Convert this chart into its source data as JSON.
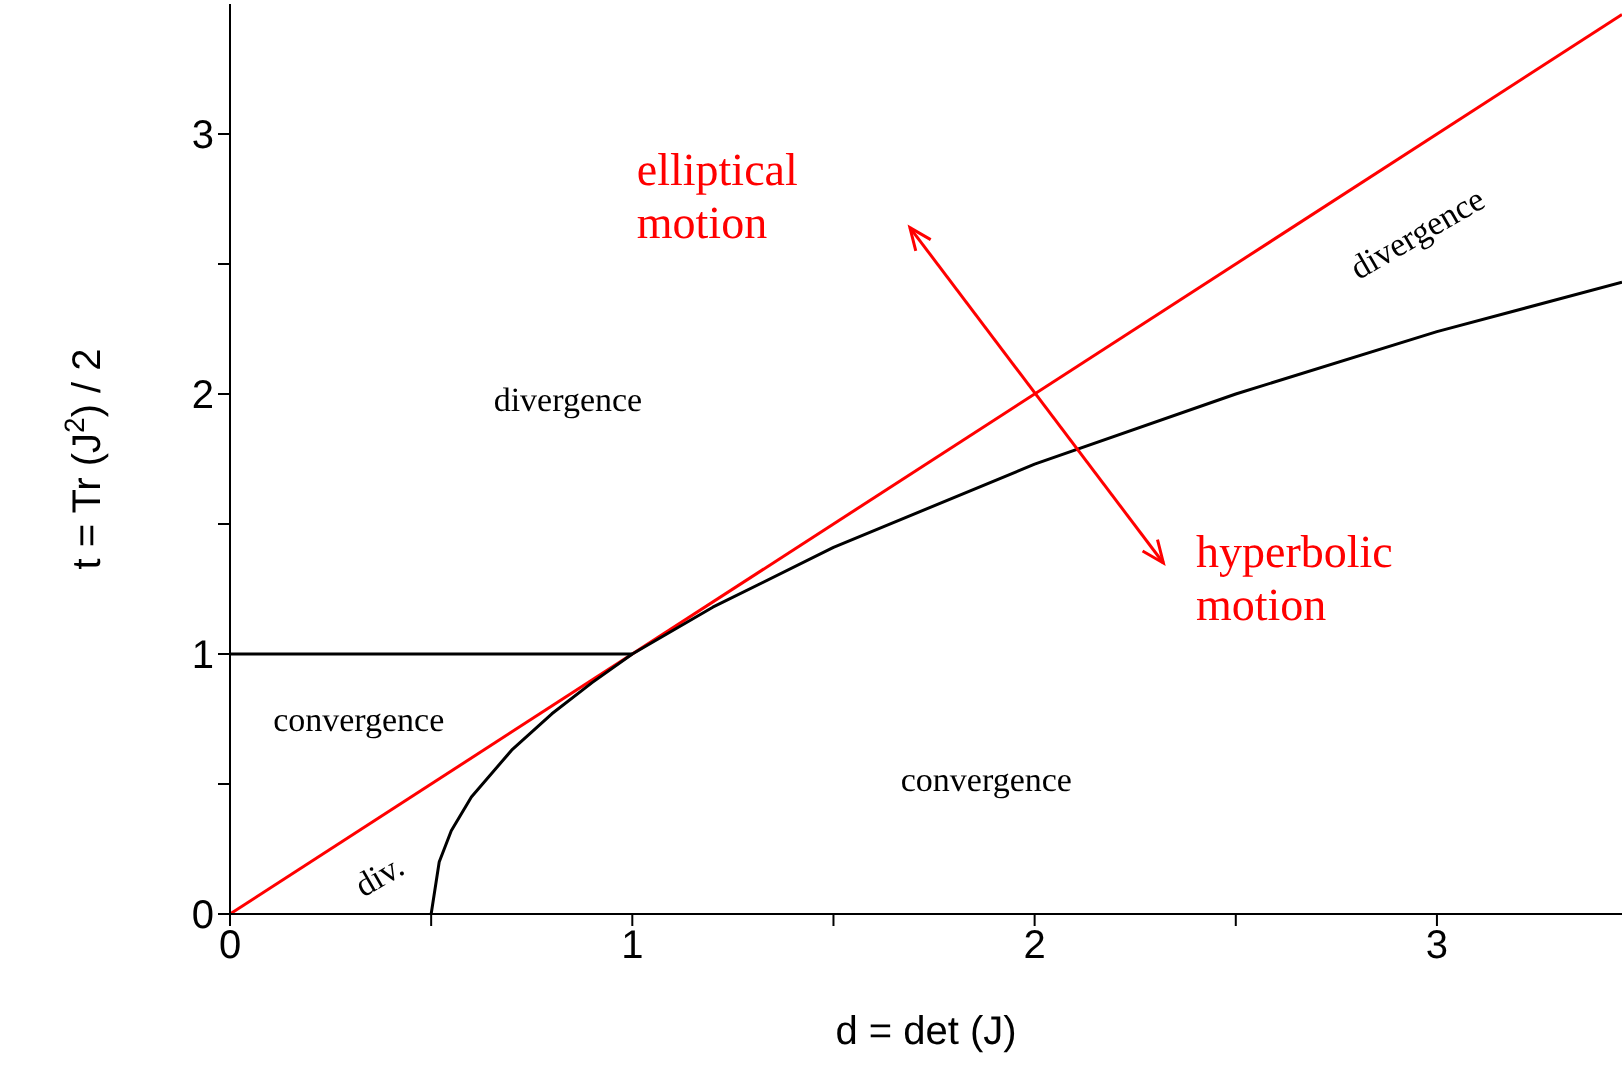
{
  "chart_data": {
    "type": "line",
    "xlabel": "d = det (J)",
    "ylabel": "t = Tr (J$^{2}$) / 2",
    "xlim": [
      0,
      3.46
    ],
    "ylim": [
      0,
      3.5
    ],
    "xticks": [
      0,
      {
        "value": 0.5,
        "label": null
      },
      1,
      {
        "value": 1.5,
        "label": null
      },
      2,
      {
        "value": 2.5,
        "label": null
      },
      3
    ],
    "yticks": [
      0,
      {
        "value": 0.5,
        "label": null
      },
      1,
      {
        "value": 1.5,
        "label": null
      },
      2,
      {
        "value": 2.5,
        "label": null
      },
      3
    ],
    "grid": false,
    "legend": false,
    "marker": "none",
    "line_style": "solid",
    "series": [
      {
        "color": "#ff0000",
        "x": [
          0,
          3.46
        ],
        "values": [
          0,
          3.46
        ]
      },
      {
        "color": "#000000",
        "x": [
          0.5,
          0.52,
          0.55,
          0.6,
          0.7,
          0.8,
          0.9,
          1,
          1.2,
          1.5,
          2,
          2.5,
          3,
          3.46
        ],
        "values": [
          0,
          0.2,
          0.32,
          0.45,
          0.63,
          0.77,
          0.89,
          1,
          1.18,
          1.41,
          1.73,
          2,
          2.24,
          2.43
        ]
      },
      {
        "color": "#000000",
        "x": [
          0,
          1
        ],
        "values": [
          1,
          1
        ]
      }
    ],
    "annotations": [
      "elliptical motion",
      "hyperbolic motion",
      "divergence",
      "convergence",
      "convergence",
      "divergence",
      "div."
    ]
  }
}
